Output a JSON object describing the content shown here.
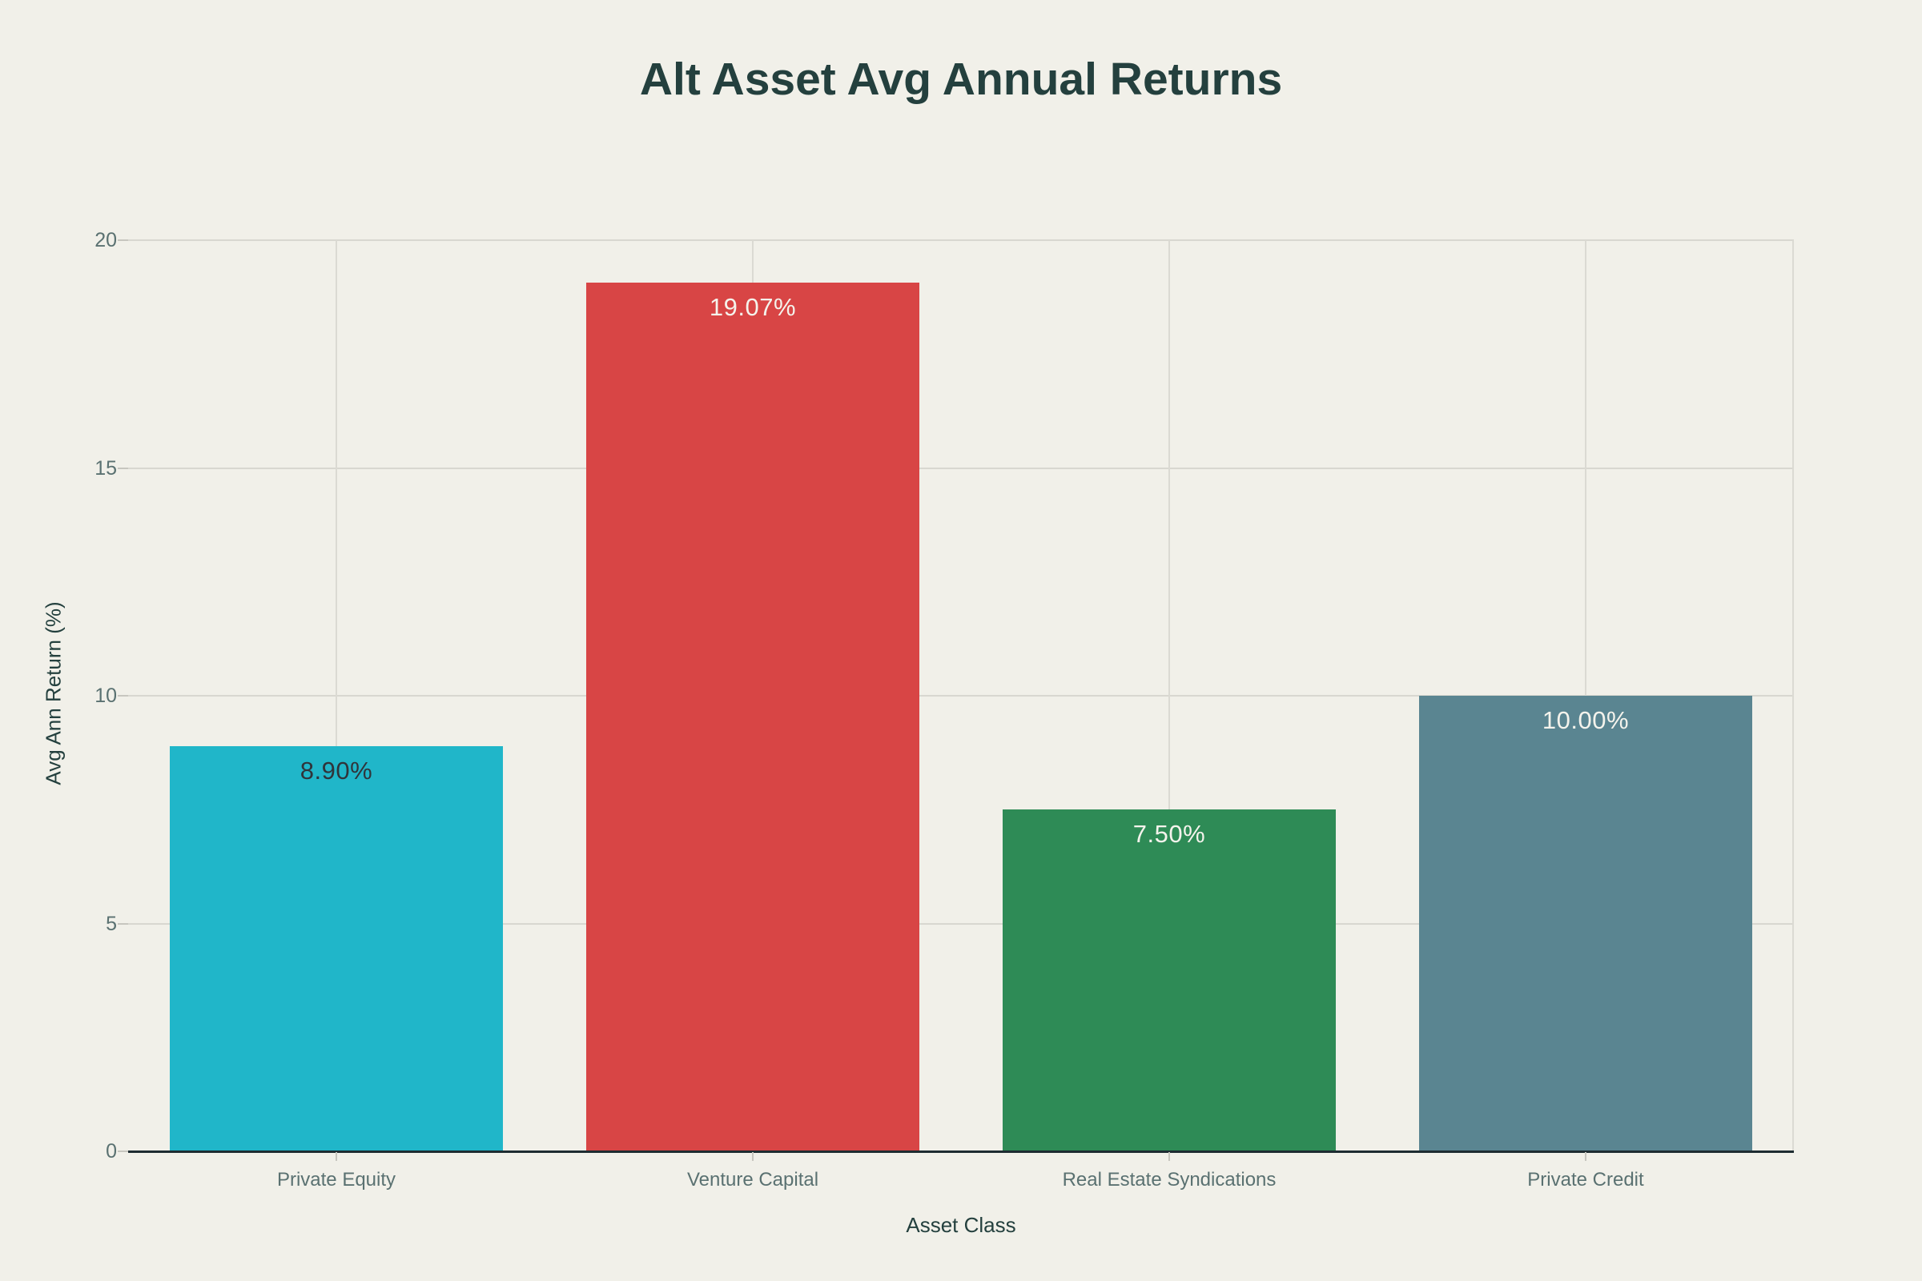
{
  "chart_data": {
    "type": "bar",
    "title": "Alt Asset Avg Annual Returns",
    "xlabel": "Asset Class",
    "ylabel": "Avg Ann Return (%)",
    "categories": [
      "Private Equity",
      "Venture Capital",
      "Real Estate Syndications",
      "Private Credit"
    ],
    "values": [
      8.9,
      19.07,
      7.5,
      10.0
    ],
    "value_labels": [
      "8.90%",
      "19.07%",
      "7.50%",
      "10.00%"
    ],
    "bar_colors": [
      "#20b6c9",
      "#d84545",
      "#2e8b56",
      "#5a8591"
    ],
    "value_label_colors": [
      "#30343a",
      "#f4f3ec",
      "#f4f3ec",
      "#f4f3ec"
    ],
    "ylim": [
      0,
      20
    ],
    "yticks": [
      0,
      5,
      10,
      15,
      20
    ],
    "ytick_labels": [
      "0",
      "5",
      "10",
      "15",
      "20"
    ],
    "grid": true,
    "legend": false,
    "bar_width_fraction": 0.8
  },
  "colors": {
    "background": "#f1f0e9",
    "title_text": "#24403e",
    "axis_title_text": "#24403e",
    "tick_text": "#5a7171",
    "gridline": "#d8d7d0",
    "axis_line": "#1e2c31",
    "tick_mark": "#c7c6bf"
  }
}
